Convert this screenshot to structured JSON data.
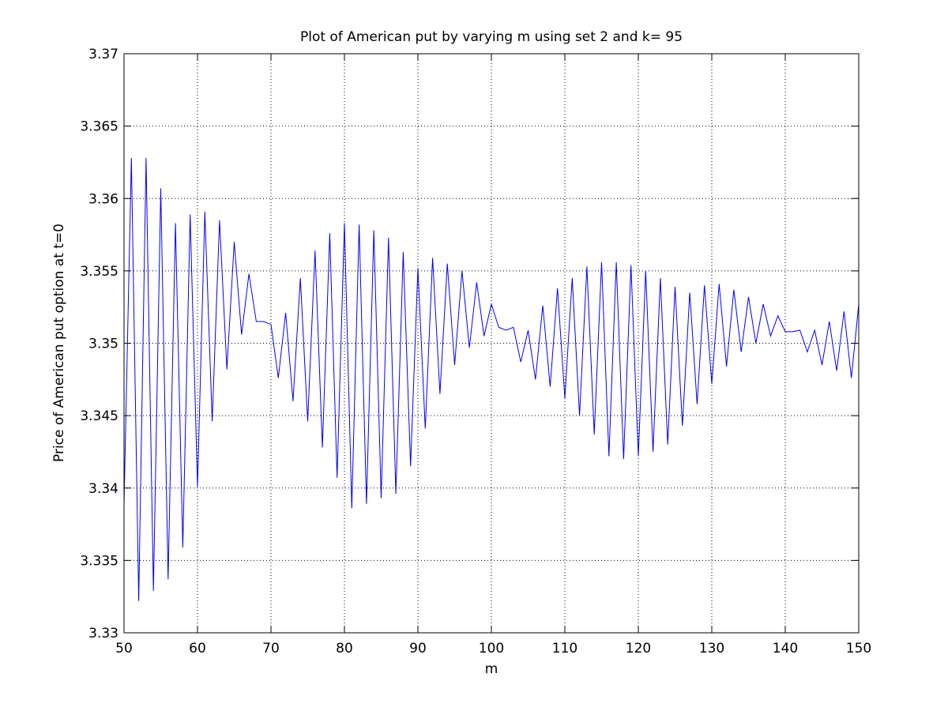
{
  "chart_data": {
    "type": "line",
    "title": "Plot of American put by varying m using set 2 and k= 95",
    "xlabel": "m",
    "ylabel": "Price of American put option at t=0",
    "xlim": [
      50,
      150
    ],
    "ylim": [
      3.33,
      3.37
    ],
    "xticks": [
      50,
      60,
      70,
      80,
      90,
      100,
      110,
      120,
      130,
      140,
      150
    ],
    "xtick_labels": [
      "50",
      "60",
      "70",
      "80",
      "90",
      "100",
      "110",
      "120",
      "130",
      "140",
      "150"
    ],
    "yticks": [
      3.33,
      3.335,
      3.34,
      3.345,
      3.35,
      3.355,
      3.36,
      3.365,
      3.37
    ],
    "ytick_labels": [
      "3.33",
      "3.335",
      "3.34",
      "3.345",
      "3.35",
      "3.355",
      "3.36",
      "3.365",
      "3.37"
    ],
    "grid": true,
    "legend": "none",
    "line_color": "#0000ff",
    "series": [
      {
        "x": [
          50,
          51,
          52,
          53,
          54,
          55,
          56,
          57,
          58,
          59,
          60,
          61,
          62,
          63,
          64,
          65,
          66,
          67,
          68,
          69,
          70,
          71,
          72,
          73,
          74,
          75,
          76,
          77,
          78,
          79,
          80,
          81,
          82,
          83,
          84,
          85,
          86,
          87,
          88,
          89,
          90,
          91,
          92,
          93,
          94,
          95,
          96,
          97,
          98,
          99,
          100,
          101,
          102,
          103,
          104,
          105,
          106,
          107,
          108,
          109,
          110,
          111,
          112,
          113,
          114,
          115,
          116,
          117,
          118,
          119,
          120,
          121,
          122,
          123,
          124,
          125,
          126,
          127,
          128,
          129,
          130,
          131,
          132,
          133,
          134,
          135,
          136,
          137,
          138,
          139,
          140,
          141,
          142,
          143,
          144,
          145,
          146,
          147,
          148,
          149,
          150
        ],
        "values": [
          3.3389,
          3.3628,
          3.3322,
          3.3628,
          3.3329,
          3.3607,
          3.3337,
          3.3583,
          3.3359,
          3.3589,
          3.3401,
          3.3591,
          3.3446,
          3.3585,
          3.3482,
          3.357,
          3.3506,
          3.3548,
          3.3515,
          3.3515,
          3.3513,
          3.3476,
          3.3521,
          3.346,
          3.3545,
          3.3446,
          3.3564,
          3.3428,
          3.3576,
          3.3407,
          3.3583,
          3.3386,
          3.3582,
          3.3389,
          3.3578,
          3.3393,
          3.3573,
          3.3396,
          3.3563,
          3.3415,
          3.3552,
          3.3441,
          3.3559,
          3.3465,
          3.3555,
          3.3485,
          3.355,
          3.3497,
          3.3542,
          3.3505,
          3.3527,
          3.3511,
          3.3509,
          3.3511,
          3.3487,
          3.3509,
          3.3475,
          3.3526,
          3.347,
          3.3538,
          3.3462,
          3.3545,
          3.345,
          3.3553,
          3.3437,
          3.3556,
          3.3422,
          3.3556,
          3.342,
          3.3554,
          3.3422,
          3.355,
          3.3425,
          3.3545,
          3.343,
          3.3539,
          3.3443,
          3.3535,
          3.3458,
          3.354,
          3.3472,
          3.3541,
          3.3484,
          3.3537,
          3.3494,
          3.3532,
          3.35,
          3.3527,
          3.3505,
          3.3519,
          3.3508,
          3.3508,
          3.3509,
          3.3494,
          3.3509,
          3.3485,
          3.3515,
          3.3481,
          3.3522,
          3.3476,
          3.3527
        ]
      }
    ]
  }
}
